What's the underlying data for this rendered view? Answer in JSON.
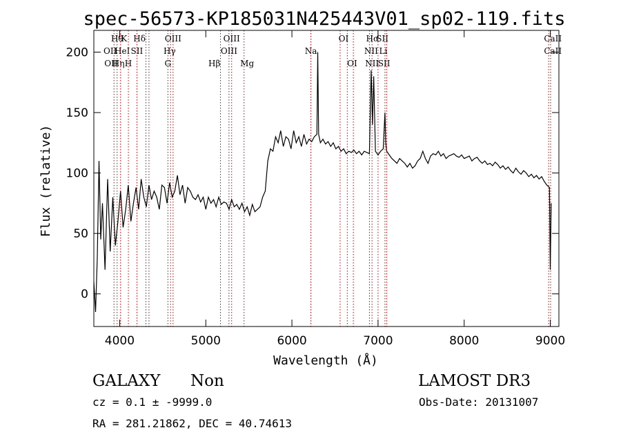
{
  "chart_data": {
    "type": "line",
    "title": "spec-56573-KP185031N425443V01_sp02-119.fits",
    "xlabel": "Wavelength (Å)",
    "ylabel": "Flux (relative)",
    "xlim": [
      3700,
      9100
    ],
    "ylim": [
      -27,
      218
    ],
    "x_ticks": [
      4000,
      5000,
      6000,
      7000,
      8000,
      9000
    ],
    "y_ticks": [
      0,
      50,
      100,
      150,
      200
    ],
    "grid": false,
    "series": [
      {
        "x": [
          3700,
          3720,
          3740,
          3760,
          3780,
          3800,
          3830,
          3860,
          3890,
          3920,
          3950,
          3980,
          4010,
          4040,
          4070,
          4100,
          4130,
          4160,
          4190,
          4220,
          4250,
          4280,
          4310,
          4340,
          4370,
          4400,
          4430,
          4460,
          4490,
          4520,
          4550,
          4580,
          4610,
          4640,
          4670,
          4700,
          4730,
          4760,
          4790,
          4820,
          4850,
          4880,
          4910,
          4940,
          4970,
          5000,
          5030,
          5060,
          5090,
          5120,
          5150,
          5180,
          5210,
          5240,
          5270,
          5300,
          5330,
          5360,
          5390,
          5420,
          5450,
          5480,
          5510,
          5540,
          5570,
          5600,
          5630,
          5660,
          5690,
          5720,
          5750,
          5780,
          5810,
          5840,
          5870,
          5900,
          5930,
          5960,
          5990,
          6020,
          6050,
          6080,
          6110,
          6140,
          6170,
          6200,
          6230,
          6260,
          6290,
          6300,
          6310,
          6330,
          6360,
          6390,
          6420,
          6450,
          6480,
          6510,
          6540,
          6570,
          6600,
          6630,
          6660,
          6690,
          6720,
          6750,
          6780,
          6810,
          6840,
          6870,
          6900,
          6920,
          6935,
          6950,
          6970,
          7000,
          7030,
          7060,
          7080,
          7090,
          7100,
          7130,
          7160,
          7190,
          7220,
          7250,
          7280,
          7310,
          7340,
          7370,
          7400,
          7430,
          7460,
          7490,
          7520,
          7550,
          7580,
          7610,
          7640,
          7670,
          7700,
          7730,
          7760,
          7790,
          7820,
          7850,
          7880,
          7910,
          7940,
          7970,
          8000,
          8030,
          8060,
          8090,
          8120,
          8150,
          8180,
          8210,
          8240,
          8270,
          8300,
          8330,
          8360,
          8390,
          8420,
          8450,
          8480,
          8510,
          8540,
          8570,
          8600,
          8630,
          8660,
          8690,
          8720,
          8750,
          8780,
          8810,
          8840,
          8870,
          8900,
          8930,
          8960,
          8990,
          9000,
          9010
        ],
        "y": [
          10,
          -15,
          30,
          110,
          45,
          75,
          20,
          95,
          35,
          80,
          40,
          60,
          85,
          55,
          70,
          90,
          60,
          75,
          88,
          70,
          95,
          80,
          72,
          90,
          78,
          85,
          80,
          70,
          90,
          88,
          75,
          92,
          80,
          85,
          98,
          82,
          90,
          75,
          88,
          85,
          80,
          78,
          82,
          76,
          80,
          70,
          80,
          75,
          78,
          72,
          80,
          74,
          76,
          75,
          70,
          78,
          72,
          74,
          70,
          75,
          68,
          72,
          65,
          74,
          68,
          70,
          72,
          80,
          85,
          110,
          120,
          118,
          130,
          125,
          135,
          122,
          130,
          128,
          120,
          135,
          125,
          130,
          122,
          132,
          124,
          128,
          126,
          130,
          132,
          200,
          132,
          125,
          128,
          124,
          126,
          122,
          125,
          120,
          122,
          118,
          120,
          116,
          118,
          117,
          119,
          116,
          118,
          115,
          118,
          117,
          116,
          185,
          140,
          180,
          118,
          115,
          118,
          120,
          150,
          125,
          118,
          115,
          112,
          110,
          108,
          112,
          110,
          108,
          105,
          108,
          104,
          106,
          110,
          112,
          118,
          112,
          108,
          114,
          116,
          115,
          118,
          114,
          116,
          112,
          114,
          115,
          116,
          114,
          113,
          115,
          112,
          113,
          114,
          110,
          112,
          113,
          110,
          108,
          110,
          107,
          108,
          106,
          109,
          107,
          104,
          106,
          103,
          105,
          102,
          100,
          104,
          101,
          99,
          102,
          100,
          97,
          99,
          96,
          98,
          95,
          97,
          93,
          90,
          88,
          20,
          75
        ]
      }
    ],
    "lines_top_row": [
      {
        "label": "Hθ",
        "x": 3970
      },
      {
        "label": "K",
        "x": 4050
      },
      {
        "label": "Hδ",
        "x": 4230
      },
      {
        "label": "OIII",
        "x": 4620
      },
      {
        "label": "OIII",
        "x": 5300
      },
      {
        "label": "OI",
        "x": 6600
      },
      {
        "label": "Hα",
        "x": 6935
      },
      {
        "label": "SII",
        "x": 7050
      },
      {
        "label": "CaII",
        "x": 9030
      }
    ],
    "lines_mid_row": [
      {
        "label": "OII",
        "x": 3890
      },
      {
        "label": "HeI",
        "x": 4030
      },
      {
        "label": "SII",
        "x": 4200
      },
      {
        "label": "Hγ",
        "x": 4580
      },
      {
        "label": "OIII",
        "x": 5270
      },
      {
        "label": "Na",
        "x": 6220
      },
      {
        "label": "NII",
        "x": 6920
      },
      {
        "label": "Li",
        "x": 7060
      },
      {
        "label": "CaII",
        "x": 9030
      }
    ],
    "lines_low_row": [
      {
        "label": "OII",
        "x": 3900
      },
      {
        "label": "Hη",
        "x": 3985
      },
      {
        "label": "H",
        "x": 4100
      },
      {
        "label": "G",
        "x": 4560
      },
      {
        "label": "Hβ",
        "x": 5100
      },
      {
        "label": "Mg",
        "x": 5480
      },
      {
        "label": "OI",
        "x": 6700
      },
      {
        "label": "NII",
        "x": 6930
      },
      {
        "label": "SII",
        "x": 7070
      }
    ],
    "line_markers": [
      3934,
      3970,
      4010,
      4101,
      4200,
      4305,
      4340,
      4560,
      4591,
      4620,
      5170,
      5269,
      5300,
      5444,
      6220,
      6560,
      6643,
      6713,
      6900,
      6930,
      7000,
      7080,
      7100,
      8981,
      9003
    ]
  },
  "info": {
    "class": "GALAXY",
    "subclass": "Non",
    "survey": "LAMOST DR3",
    "cz": "cz = 0.1 ± -9999.0",
    "obsdate": "Obs-Date: 20131007",
    "radec": "RA = 281.21862, DEC =  40.74613"
  }
}
